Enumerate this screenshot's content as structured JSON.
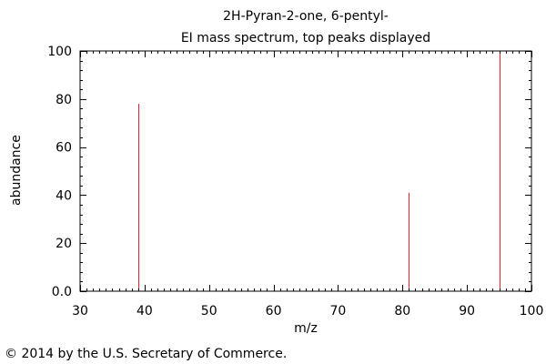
{
  "chart_data": {
    "type": "bar",
    "title": "2H-Pyran-2-one, 6-pentyl-",
    "subtitle": "EI mass spectrum, top peaks displayed",
    "xlabel": "m/z",
    "ylabel": "abundance",
    "xlim": [
      30,
      100
    ],
    "ylim": [
      0,
      100
    ],
    "xticks": [
      "30",
      "40",
      "50",
      "60",
      "70",
      "80",
      "90",
      "100"
    ],
    "yticks": [
      "0.0",
      "20",
      "40",
      "60",
      "80",
      "100"
    ],
    "grid": false,
    "peaks": [
      {
        "mz": 39,
        "abundance": 78
      },
      {
        "mz": 81,
        "abundance": 41
      },
      {
        "mz": 95,
        "abundance": 100
      }
    ],
    "peak_color": "#e8202a",
    "axis_color": "#000000"
  },
  "footer": {
    "copyright": "© 2014 by the U.S. Secretary of Commerce."
  }
}
